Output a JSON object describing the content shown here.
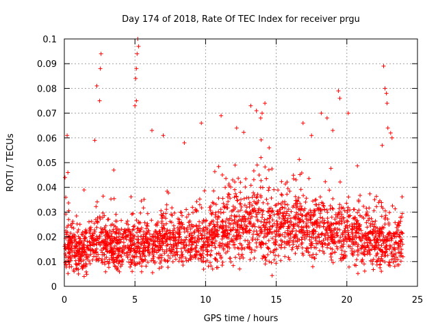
{
  "chart_data": {
    "type": "scatter",
    "title": "Day 174 of 2018, Rate Of TEC Index for receiver prgu",
    "xlabel": "GPS time / hours",
    "ylabel": "ROTI / TECUs",
    "xlim": [
      0,
      25
    ],
    "ylim": [
      0,
      0.1
    ],
    "xticks": [
      "0",
      "5",
      "10",
      "15",
      "20",
      "25"
    ],
    "yticks": [
      "0",
      "0.01",
      "0.02",
      "0.03",
      "0.04",
      "0.05",
      "0.06",
      "0.07",
      "0.08",
      "0.09",
      "0.1"
    ],
    "grid": true,
    "marker": "+",
    "color": "#ff0000",
    "density_profile": {
      "hours": [
        0,
        1,
        2,
        3,
        4,
        5,
        6,
        7,
        8,
        9,
        10,
        11,
        12,
        13,
        14,
        15,
        16,
        17,
        18,
        19,
        20,
        21,
        22,
        23,
        24
      ],
      "typical_roti": [
        0.016,
        0.014,
        0.017,
        0.017,
        0.016,
        0.017,
        0.017,
        0.018,
        0.018,
        0.019,
        0.019,
        0.021,
        0.024,
        0.025,
        0.025,
        0.024,
        0.024,
        0.023,
        0.023,
        0.022,
        0.021,
        0.019,
        0.018,
        0.017,
        0.017
      ]
    },
    "series": [
      {
        "name": "prgu",
        "x": [
          0.05,
          0.1,
          0.2,
          0.25,
          0.3,
          2.15,
          2.3,
          2.5,
          2.55,
          2.6,
          5.0,
          5.05,
          5.1,
          5.15,
          5.2,
          5.25,
          5.1,
          3.5,
          6.2,
          7.0,
          8.5,
          9.7,
          11.1,
          12.2,
          13.2,
          13.6,
          13.9,
          14.0,
          14.2,
          14.5,
          16.9,
          17.5,
          18.2,
          18.6,
          19.0,
          19.4,
          19.5,
          20.1,
          22.5,
          22.6,
          22.7,
          22.8,
          22.85,
          22.9,
          23.1,
          23.2,
          1.0,
          1.4,
          4.8,
          10.5
        ],
        "y": [
          0.044,
          0.036,
          0.061,
          0.046,
          0.027,
          0.059,
          0.081,
          0.075,
          0.088,
          0.094,
          0.073,
          0.084,
          0.088,
          0.094,
          0.1,
          0.097,
          0.075,
          0.047,
          0.063,
          0.061,
          0.058,
          0.066,
          0.069,
          0.064,
          0.073,
          0.071,
          0.068,
          0.07,
          0.074,
          0.056,
          0.066,
          0.061,
          0.07,
          0.068,
          0.063,
          0.079,
          0.076,
          0.07,
          0.057,
          0.089,
          0.08,
          0.078,
          0.074,
          0.064,
          0.062,
          0.06,
          0.005,
          0.004,
          0.006,
          0.007
        ]
      }
    ]
  }
}
